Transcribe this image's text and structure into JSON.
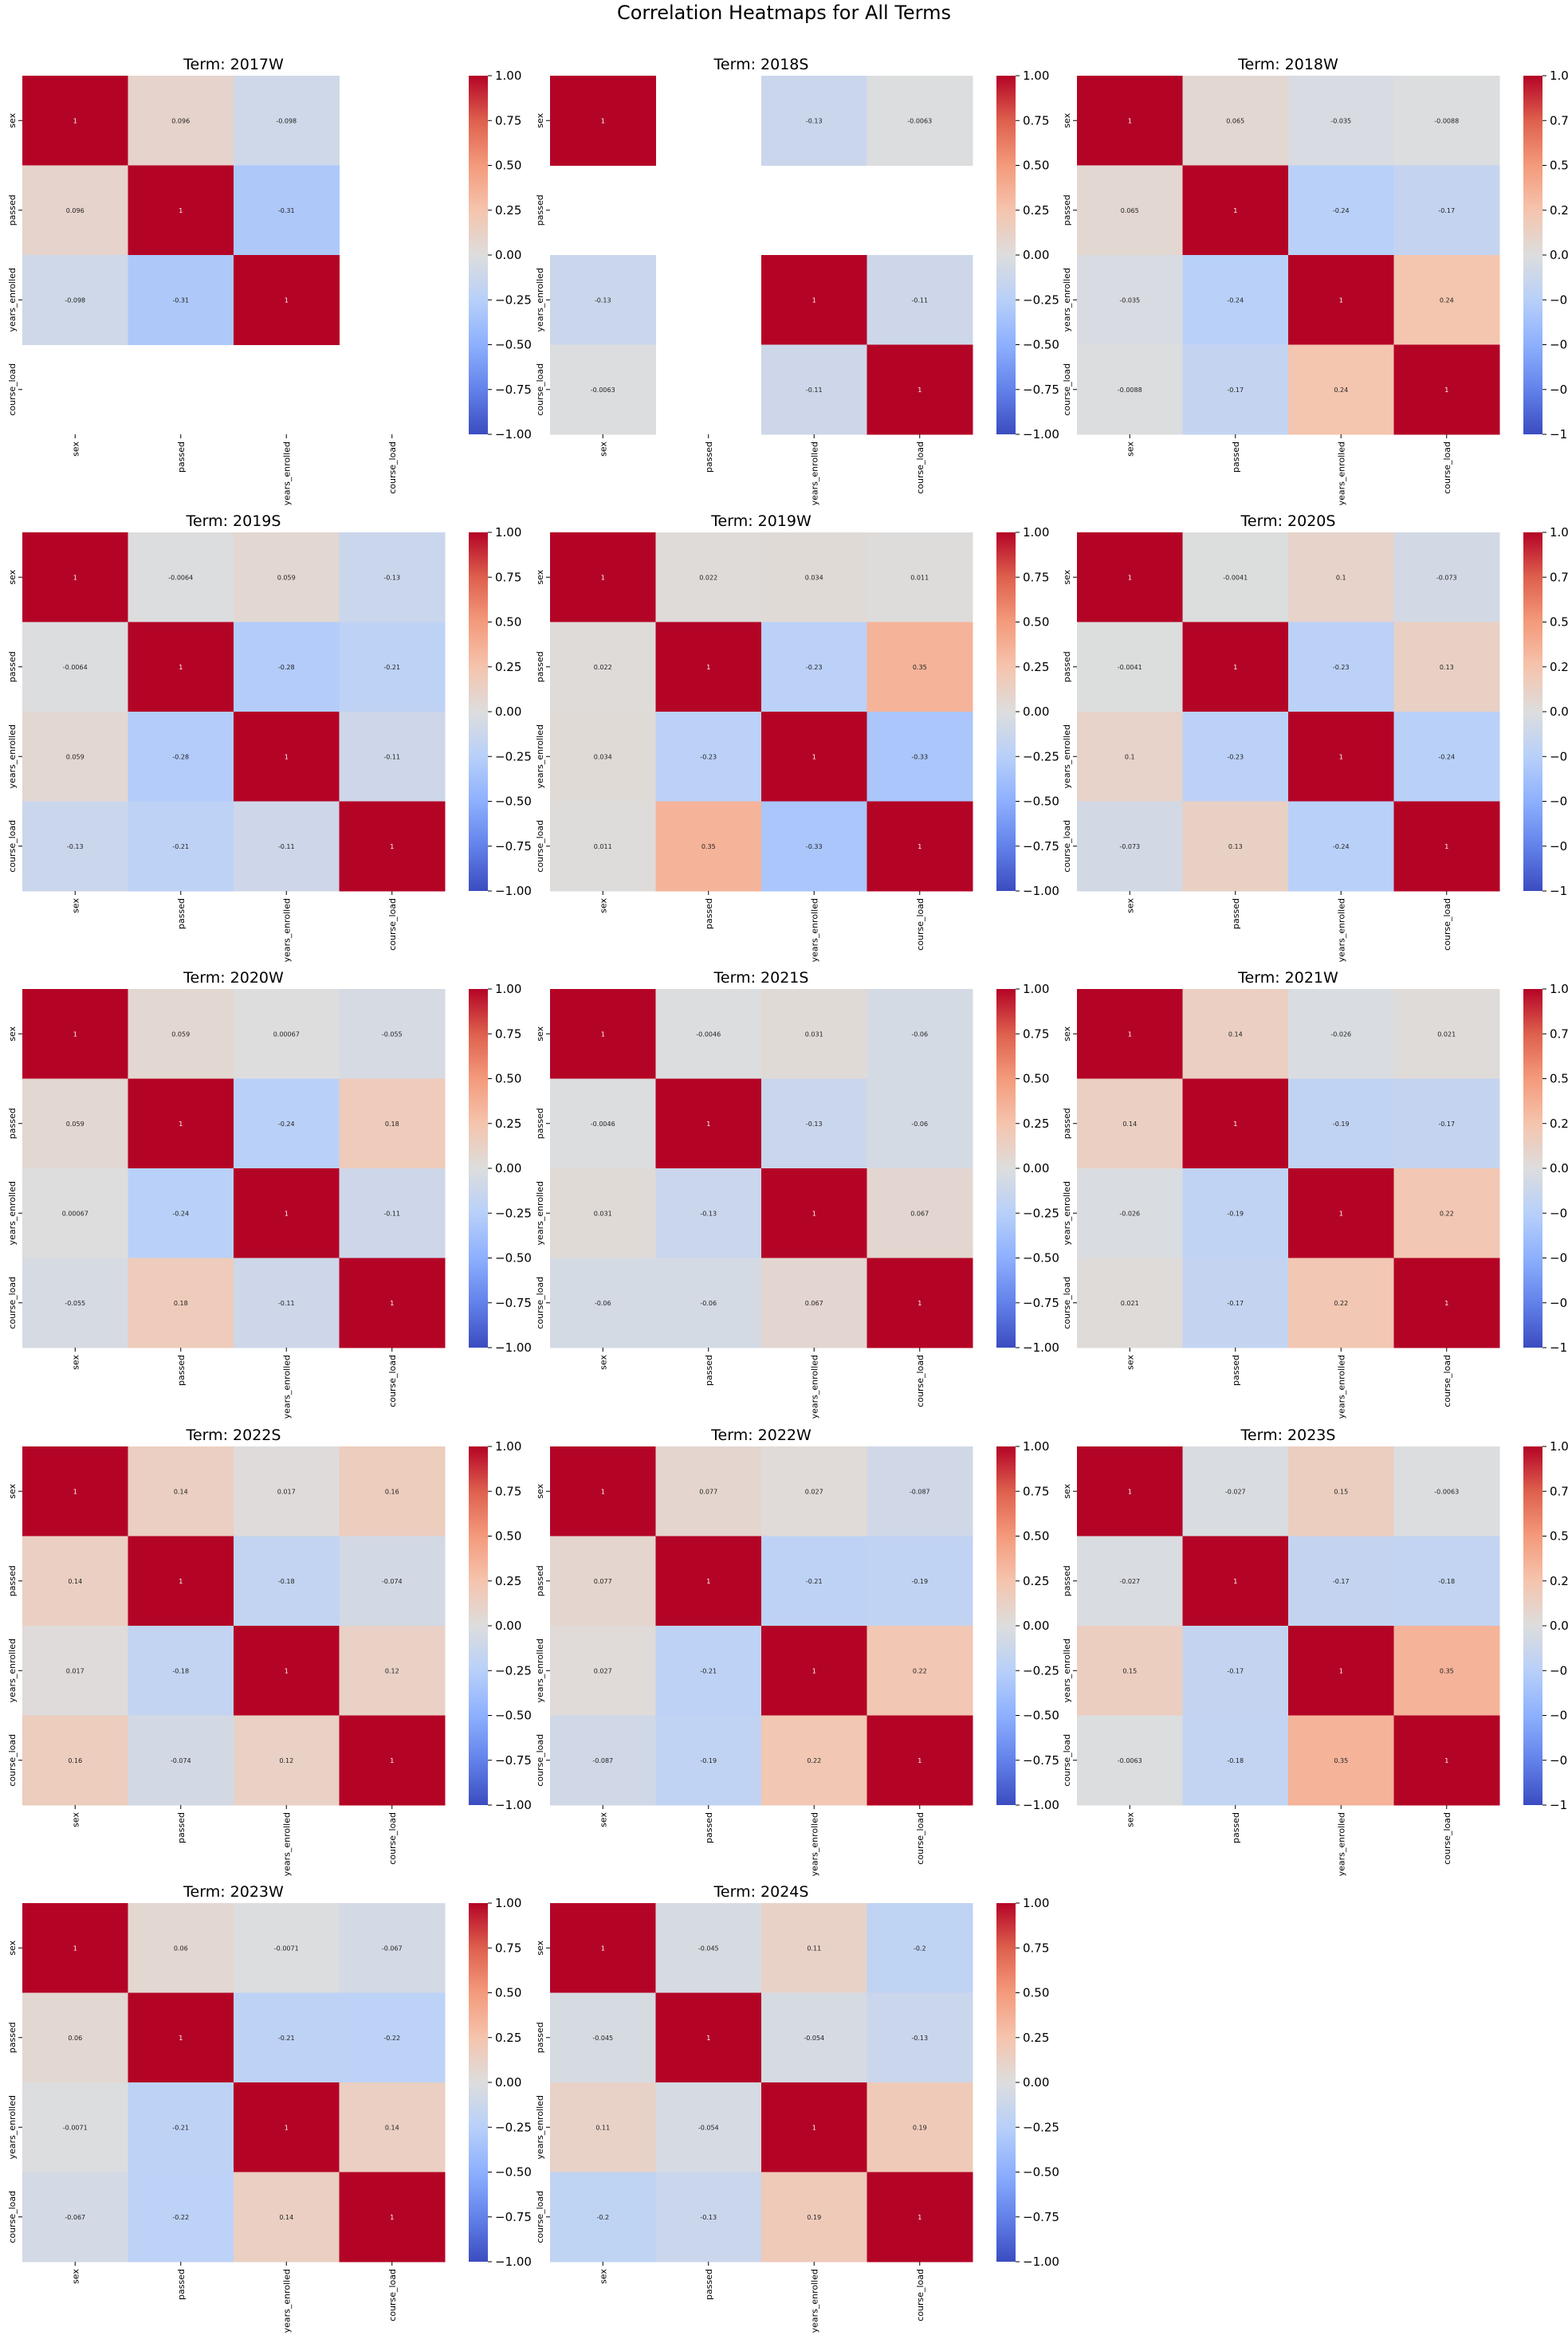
{
  "figure_title": "Correlation Heatmaps for All Terms",
  "colorbar_ticks": [
    "1.00",
    "0.75",
    "0.50",
    "0.25",
    "0.00",
    "−0.25",
    "−0.50",
    "−0.75",
    "−1.00"
  ],
  "chart_data": [
    {
      "type": "heatmap",
      "title": "Term: 2017W",
      "x_labels": [
        "sex",
        "passed",
        "years_enrolled",
        "course_load"
      ],
      "y_labels": [
        "sex",
        "passed",
        "years_enrolled",
        "course_load"
      ],
      "colorscale": "coolwarm",
      "vmin": -1,
      "vmax": 1,
      "z": [
        [
          1,
          0.096,
          -0.098,
          null
        ],
        [
          0.096,
          1,
          -0.31,
          null
        ],
        [
          -0.098,
          -0.31,
          1,
          null
        ],
        [
          null,
          null,
          null,
          null
        ]
      ],
      "annotations": [
        [
          "1",
          "0.096",
          "-0.098",
          ""
        ],
        [
          "0.096",
          "1",
          "-0.31",
          ""
        ],
        [
          "-0.098",
          "-0.31",
          "1",
          ""
        ],
        [
          "",
          "",
          "",
          ""
        ]
      ]
    },
    {
      "type": "heatmap",
      "title": "Term: 2018S",
      "x_labels": [
        "sex",
        "passed",
        "years_enrolled",
        "course_load"
      ],
      "y_labels": [
        "sex",
        "passed",
        "years_enrolled",
        "course_load"
      ],
      "colorscale": "coolwarm",
      "vmin": -1,
      "vmax": 1,
      "z": [
        [
          1,
          null,
          -0.13,
          -0.0063
        ],
        [
          null,
          null,
          null,
          null
        ],
        [
          -0.13,
          null,
          1,
          -0.11
        ],
        [
          -0.0063,
          null,
          -0.11,
          1
        ]
      ],
      "annotations": [
        [
          "1",
          "",
          "-0.13",
          "-0.0063"
        ],
        [
          "",
          "",
          "",
          ""
        ],
        [
          "-0.13",
          "",
          "1",
          "-0.11"
        ],
        [
          "-0.0063",
          "",
          "-0.11",
          "1"
        ]
      ]
    },
    {
      "type": "heatmap",
      "title": "Term: 2018W",
      "x_labels": [
        "sex",
        "passed",
        "years_enrolled",
        "course_load"
      ],
      "y_labels": [
        "sex",
        "passed",
        "years_enrolled",
        "course_load"
      ],
      "colorscale": "coolwarm",
      "vmin": -1,
      "vmax": 1,
      "z": [
        [
          1,
          0.065,
          -0.035,
          -0.0088
        ],
        [
          0.065,
          1,
          -0.24,
          -0.17
        ],
        [
          -0.035,
          -0.24,
          1,
          0.24
        ],
        [
          -0.0088,
          -0.17,
          0.24,
          1
        ]
      ],
      "annotations": [
        [
          "1",
          "0.065",
          "-0.035",
          "-0.0088"
        ],
        [
          "0.065",
          "1",
          "-0.24",
          "-0.17"
        ],
        [
          "-0.035",
          "-0.24",
          "1",
          "0.24"
        ],
        [
          "-0.0088",
          "-0.17",
          "0.24",
          "1"
        ]
      ]
    },
    {
      "type": "heatmap",
      "title": "Term: 2019S",
      "x_labels": [
        "sex",
        "passed",
        "years_enrolled",
        "course_load"
      ],
      "y_labels": [
        "sex",
        "passed",
        "years_enrolled",
        "course_load"
      ],
      "colorscale": "coolwarm",
      "vmin": -1,
      "vmax": 1,
      "z": [
        [
          1,
          -0.0064,
          0.059,
          -0.13
        ],
        [
          -0.0064,
          1,
          -0.28,
          -0.21
        ],
        [
          0.059,
          -0.28,
          1,
          -0.11
        ],
        [
          -0.13,
          -0.21,
          -0.11,
          1
        ]
      ],
      "annotations": [
        [
          "1",
          "-0.0064",
          "0.059",
          "-0.13"
        ],
        [
          "-0.0064",
          "1",
          "-0.28",
          "-0.21"
        ],
        [
          "0.059",
          "-0.28",
          "1",
          "-0.11"
        ],
        [
          "-0.13",
          "-0.21",
          "-0.11",
          "1"
        ]
      ]
    },
    {
      "type": "heatmap",
      "title": "Term: 2019W",
      "x_labels": [
        "sex",
        "passed",
        "years_enrolled",
        "course_load"
      ],
      "y_labels": [
        "sex",
        "passed",
        "years_enrolled",
        "course_load"
      ],
      "colorscale": "coolwarm",
      "vmin": -1,
      "vmax": 1,
      "z": [
        [
          1,
          0.022,
          0.034,
          0.011
        ],
        [
          0.022,
          1,
          -0.23,
          0.35
        ],
        [
          0.034,
          -0.23,
          1,
          -0.33
        ],
        [
          0.011,
          0.35,
          -0.33,
          1
        ]
      ],
      "annotations": [
        [
          "1",
          "0.022",
          "0.034",
          "0.011"
        ],
        [
          "0.022",
          "1",
          "-0.23",
          "0.35"
        ],
        [
          "0.034",
          "-0.23",
          "1",
          "-0.33"
        ],
        [
          "0.011",
          "0.35",
          "-0.33",
          "1"
        ]
      ]
    },
    {
      "type": "heatmap",
      "title": "Term: 2020S",
      "x_labels": [
        "sex",
        "passed",
        "years_enrolled",
        "course_load"
      ],
      "y_labels": [
        "sex",
        "passed",
        "years_enrolled",
        "course_load"
      ],
      "colorscale": "coolwarm",
      "vmin": -1,
      "vmax": 1,
      "z": [
        [
          1,
          -0.0041,
          0.1,
          -0.073
        ],
        [
          -0.0041,
          1,
          -0.23,
          0.13
        ],
        [
          0.1,
          -0.23,
          1,
          -0.24
        ],
        [
          -0.073,
          0.13,
          -0.24,
          1
        ]
      ],
      "annotations": [
        [
          "1",
          "-0.0041",
          "0.1",
          "-0.073"
        ],
        [
          "-0.0041",
          "1",
          "-0.23",
          "0.13"
        ],
        [
          "0.1",
          "-0.23",
          "1",
          "-0.24"
        ],
        [
          "-0.073",
          "0.13",
          "-0.24",
          "1"
        ]
      ]
    },
    {
      "type": "heatmap",
      "title": "Term: 2020W",
      "x_labels": [
        "sex",
        "passed",
        "years_enrolled",
        "course_load"
      ],
      "y_labels": [
        "sex",
        "passed",
        "years_enrolled",
        "course_load"
      ],
      "colorscale": "coolwarm",
      "vmin": -1,
      "vmax": 1,
      "z": [
        [
          1,
          0.059,
          0.00067,
          -0.055
        ],
        [
          0.059,
          1,
          -0.24,
          0.18
        ],
        [
          0.00067,
          -0.24,
          1,
          -0.11
        ],
        [
          -0.055,
          0.18,
          -0.11,
          1
        ]
      ],
      "annotations": [
        [
          "1",
          "0.059",
          "0.00067",
          "-0.055"
        ],
        [
          "0.059",
          "1",
          "-0.24",
          "0.18"
        ],
        [
          "0.00067",
          "-0.24",
          "1",
          "-0.11"
        ],
        [
          "-0.055",
          "0.18",
          "-0.11",
          "1"
        ]
      ]
    },
    {
      "type": "heatmap",
      "title": "Term: 2021S",
      "x_labels": [
        "sex",
        "passed",
        "years_enrolled",
        "course_load"
      ],
      "y_labels": [
        "sex",
        "passed",
        "years_enrolled",
        "course_load"
      ],
      "colorscale": "coolwarm",
      "vmin": -1,
      "vmax": 1,
      "z": [
        [
          1,
          -0.0046,
          0.031,
          -0.06
        ],
        [
          -0.0046,
          1,
          -0.13,
          -0.06
        ],
        [
          0.031,
          -0.13,
          1,
          0.067
        ],
        [
          -0.06,
          -0.06,
          0.067,
          1
        ]
      ],
      "annotations": [
        [
          "1",
          "-0.0046",
          "0.031",
          "-0.06"
        ],
        [
          "-0.0046",
          "1",
          "-0.13",
          "-0.06"
        ],
        [
          "0.031",
          "-0.13",
          "1",
          "0.067"
        ],
        [
          "-0.06",
          "-0.06",
          "0.067",
          "1"
        ]
      ]
    },
    {
      "type": "heatmap",
      "title": "Term: 2021W",
      "x_labels": [
        "sex",
        "passed",
        "years_enrolled",
        "course_load"
      ],
      "y_labels": [
        "sex",
        "passed",
        "years_enrolled",
        "course_load"
      ],
      "colorscale": "coolwarm",
      "vmin": -1,
      "vmax": 1,
      "z": [
        [
          1,
          0.14,
          -0.026,
          0.021
        ],
        [
          0.14,
          1,
          -0.19,
          -0.17
        ],
        [
          -0.026,
          -0.19,
          1,
          0.22
        ],
        [
          0.021,
          -0.17,
          0.22,
          1
        ]
      ],
      "annotations": [
        [
          "1",
          "0.14",
          "-0.026",
          "0.021"
        ],
        [
          "0.14",
          "1",
          "-0.19",
          "-0.17"
        ],
        [
          "-0.026",
          "-0.19",
          "1",
          "0.22"
        ],
        [
          "0.021",
          "-0.17",
          "0.22",
          "1"
        ]
      ]
    },
    {
      "type": "heatmap",
      "title": "Term: 2022S",
      "x_labels": [
        "sex",
        "passed",
        "years_enrolled",
        "course_load"
      ],
      "y_labels": [
        "sex",
        "passed",
        "years_enrolled",
        "course_load"
      ],
      "colorscale": "coolwarm",
      "vmin": -1,
      "vmax": 1,
      "z": [
        [
          1,
          0.14,
          0.017,
          0.16
        ],
        [
          0.14,
          1,
          -0.18,
          -0.074
        ],
        [
          0.017,
          -0.18,
          1,
          0.12
        ],
        [
          0.16,
          -0.074,
          0.12,
          1
        ]
      ],
      "annotations": [
        [
          "1",
          "0.14",
          "0.017",
          "0.16"
        ],
        [
          "0.14",
          "1",
          "-0.18",
          "-0.074"
        ],
        [
          "0.017",
          "-0.18",
          "1",
          "0.12"
        ],
        [
          "0.16",
          "-0.074",
          "0.12",
          "1"
        ]
      ]
    },
    {
      "type": "heatmap",
      "title": "Term: 2022W",
      "x_labels": [
        "sex",
        "passed",
        "years_enrolled",
        "course_load"
      ],
      "y_labels": [
        "sex",
        "passed",
        "years_enrolled",
        "course_load"
      ],
      "colorscale": "coolwarm",
      "vmin": -1,
      "vmax": 1,
      "z": [
        [
          1,
          0.077,
          0.027,
          -0.087
        ],
        [
          0.077,
          1,
          -0.21,
          -0.19
        ],
        [
          0.027,
          -0.21,
          1,
          0.22
        ],
        [
          -0.087,
          -0.19,
          0.22,
          1
        ]
      ],
      "annotations": [
        [
          "1",
          "0.077",
          "0.027",
          "-0.087"
        ],
        [
          "0.077",
          "1",
          "-0.21",
          "-0.19"
        ],
        [
          "0.027",
          "-0.21",
          "1",
          "0.22"
        ],
        [
          "-0.087",
          "-0.19",
          "0.22",
          "1"
        ]
      ]
    },
    {
      "type": "heatmap",
      "title": "Term: 2023S",
      "x_labels": [
        "sex",
        "passed",
        "years_enrolled",
        "course_load"
      ],
      "y_labels": [
        "sex",
        "passed",
        "years_enrolled",
        "course_load"
      ],
      "colorscale": "coolwarm",
      "vmin": -1,
      "vmax": 1,
      "z": [
        [
          1,
          -0.027,
          0.15,
          -0.0063
        ],
        [
          -0.027,
          1,
          -0.17,
          -0.18
        ],
        [
          0.15,
          -0.17,
          1,
          0.35
        ],
        [
          -0.0063,
          -0.18,
          0.35,
          1
        ]
      ],
      "annotations": [
        [
          "1",
          "-0.027",
          "0.15",
          "-0.0063"
        ],
        [
          "-0.027",
          "1",
          "-0.17",
          "-0.18"
        ],
        [
          "0.15",
          "-0.17",
          "1",
          "0.35"
        ],
        [
          "-0.0063",
          "-0.18",
          "0.35",
          "1"
        ]
      ]
    },
    {
      "type": "heatmap",
      "title": "Term: 2023W",
      "x_labels": [
        "sex",
        "passed",
        "years_enrolled",
        "course_load"
      ],
      "y_labels": [
        "sex",
        "passed",
        "years_enrolled",
        "course_load"
      ],
      "colorscale": "coolwarm",
      "vmin": -1,
      "vmax": 1,
      "z": [
        [
          1,
          0.06,
          -0.0071,
          -0.067
        ],
        [
          0.06,
          1,
          -0.21,
          -0.22
        ],
        [
          -0.0071,
          -0.21,
          1,
          0.14
        ],
        [
          -0.067,
          -0.22,
          0.14,
          1
        ]
      ],
      "annotations": [
        [
          "1",
          "0.06",
          "-0.0071",
          "-0.067"
        ],
        [
          "0.06",
          "1",
          "-0.21",
          "-0.22"
        ],
        [
          "-0.0071",
          "-0.21",
          "1",
          "0.14"
        ],
        [
          "-0.067",
          "-0.22",
          "0.14",
          "1"
        ]
      ]
    },
    {
      "type": "heatmap",
      "title": "Term: 2024S",
      "x_labels": [
        "sex",
        "passed",
        "years_enrolled",
        "course_load"
      ],
      "y_labels": [
        "sex",
        "passed",
        "years_enrolled",
        "course_load"
      ],
      "colorscale": "coolwarm",
      "vmin": -1,
      "vmax": 1,
      "z": [
        [
          1,
          -0.045,
          0.11,
          -0.2
        ],
        [
          -0.045,
          1,
          -0.054,
          -0.13
        ],
        [
          0.11,
          -0.054,
          1,
          0.19
        ],
        [
          -0.2,
          -0.13,
          0.19,
          1
        ]
      ],
      "annotations": [
        [
          "1",
          "-0.045",
          "0.11",
          "-0.2"
        ],
        [
          "-0.045",
          "1",
          "-0.054",
          "-0.13"
        ],
        [
          "0.11",
          "-0.054",
          "1",
          "0.19"
        ],
        [
          "-0.2",
          "-0.13",
          "0.19",
          "1"
        ]
      ]
    }
  ]
}
